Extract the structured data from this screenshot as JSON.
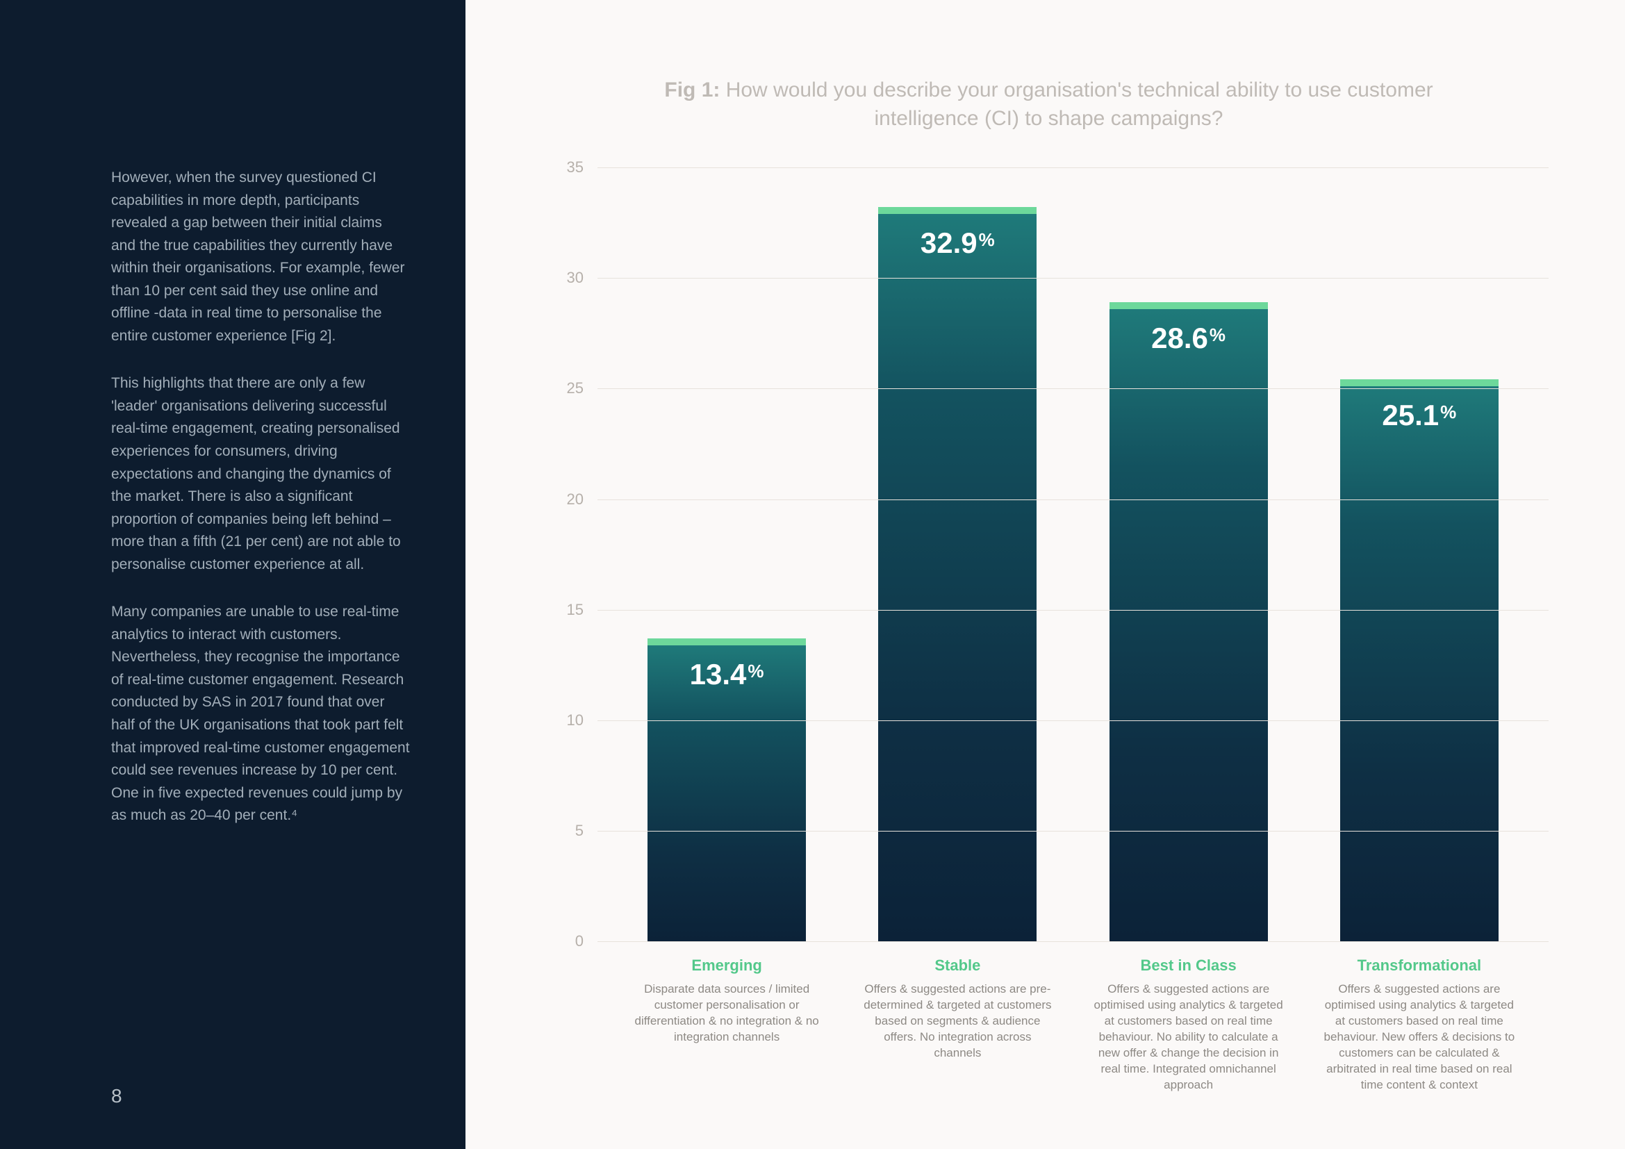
{
  "page_number": "8",
  "left": {
    "paragraphs": [
      "However, when the survey questioned CI capabilities in more depth, participants revealed a gap between their initial claims and the true capabilities they currently have within their organisations. For example, fewer than 10 per cent said they use online and offline -data in real time to personalise the entire customer experience  [Fig 2].",
      "This highlights that there are only a few 'leader' organisations delivering successful real-time engagement, creating personalised experiences for consumers, driving expectations and changing the dynamics of the market. There is also a significant proportion of companies being left behind – more than a fifth (21 per cent) are not able to personalise customer experience at all.",
      "Many companies are unable to use real-time analytics to interact with customers. Nevertheless, they recognise the importance of real-time customer engagement. Research conducted by SAS in 2017 found that over half of the UK organisations that took part felt that improved real-time customer engagement could see revenues increase by 10 per cent. One in five expected revenues could jump by as much as 20–40 per cent.⁴"
    ]
  },
  "figure": {
    "label": "Fig 1:",
    "title_rest": " How would you describe your organisation's technical ability to use customer intelligence (CI) to shape campaigns?",
    "type": "bar",
    "ylim": [
      0,
      35
    ],
    "ytick_step": 5,
    "yticks": [
      "0",
      "5",
      "10",
      "15",
      "20",
      "25",
      "30",
      "35"
    ],
    "grid_color": "#e7e2dc",
    "background_color": "#fbf9f8",
    "bar_cap_color": "#6dd89b",
    "bar_gradient_top": "#1f7a7a",
    "bar_gradient_bottom": "#0c2238",
    "value_label_color": "#ffffff",
    "value_label_fontsize": 42,
    "category_title_color": "#53c88a",
    "category_desc_color": "#8d8984",
    "categories": [
      {
        "title": "Emerging",
        "value": 13.4,
        "value_label": "13.4",
        "desc": "Disparate data sources / limited customer personalisation or differentiation & no integration & no integration channels"
      },
      {
        "title": "Stable",
        "value": 32.9,
        "value_label": "32.9",
        "desc": "Offers & suggested actions are pre-determined & targeted at customers based on segments & audience offers. No integration across channels"
      },
      {
        "title": "Best in Class",
        "value": 28.6,
        "value_label": "28.6",
        "desc": "Offers & suggested actions are optimised using analytics & targeted at customers based on real time behaviour. No ability to calculate a new offer & change the decision in real time. Integrated omnichannel approach"
      },
      {
        "title": "Transformational",
        "value": 25.1,
        "value_label": "25.1",
        "desc": "Offers & suggested actions are optimised using analytics & targeted at customers based on real time behaviour. New offers & decisions to customers can be calculated & arbitrated in real time based on real time content & context"
      }
    ]
  }
}
